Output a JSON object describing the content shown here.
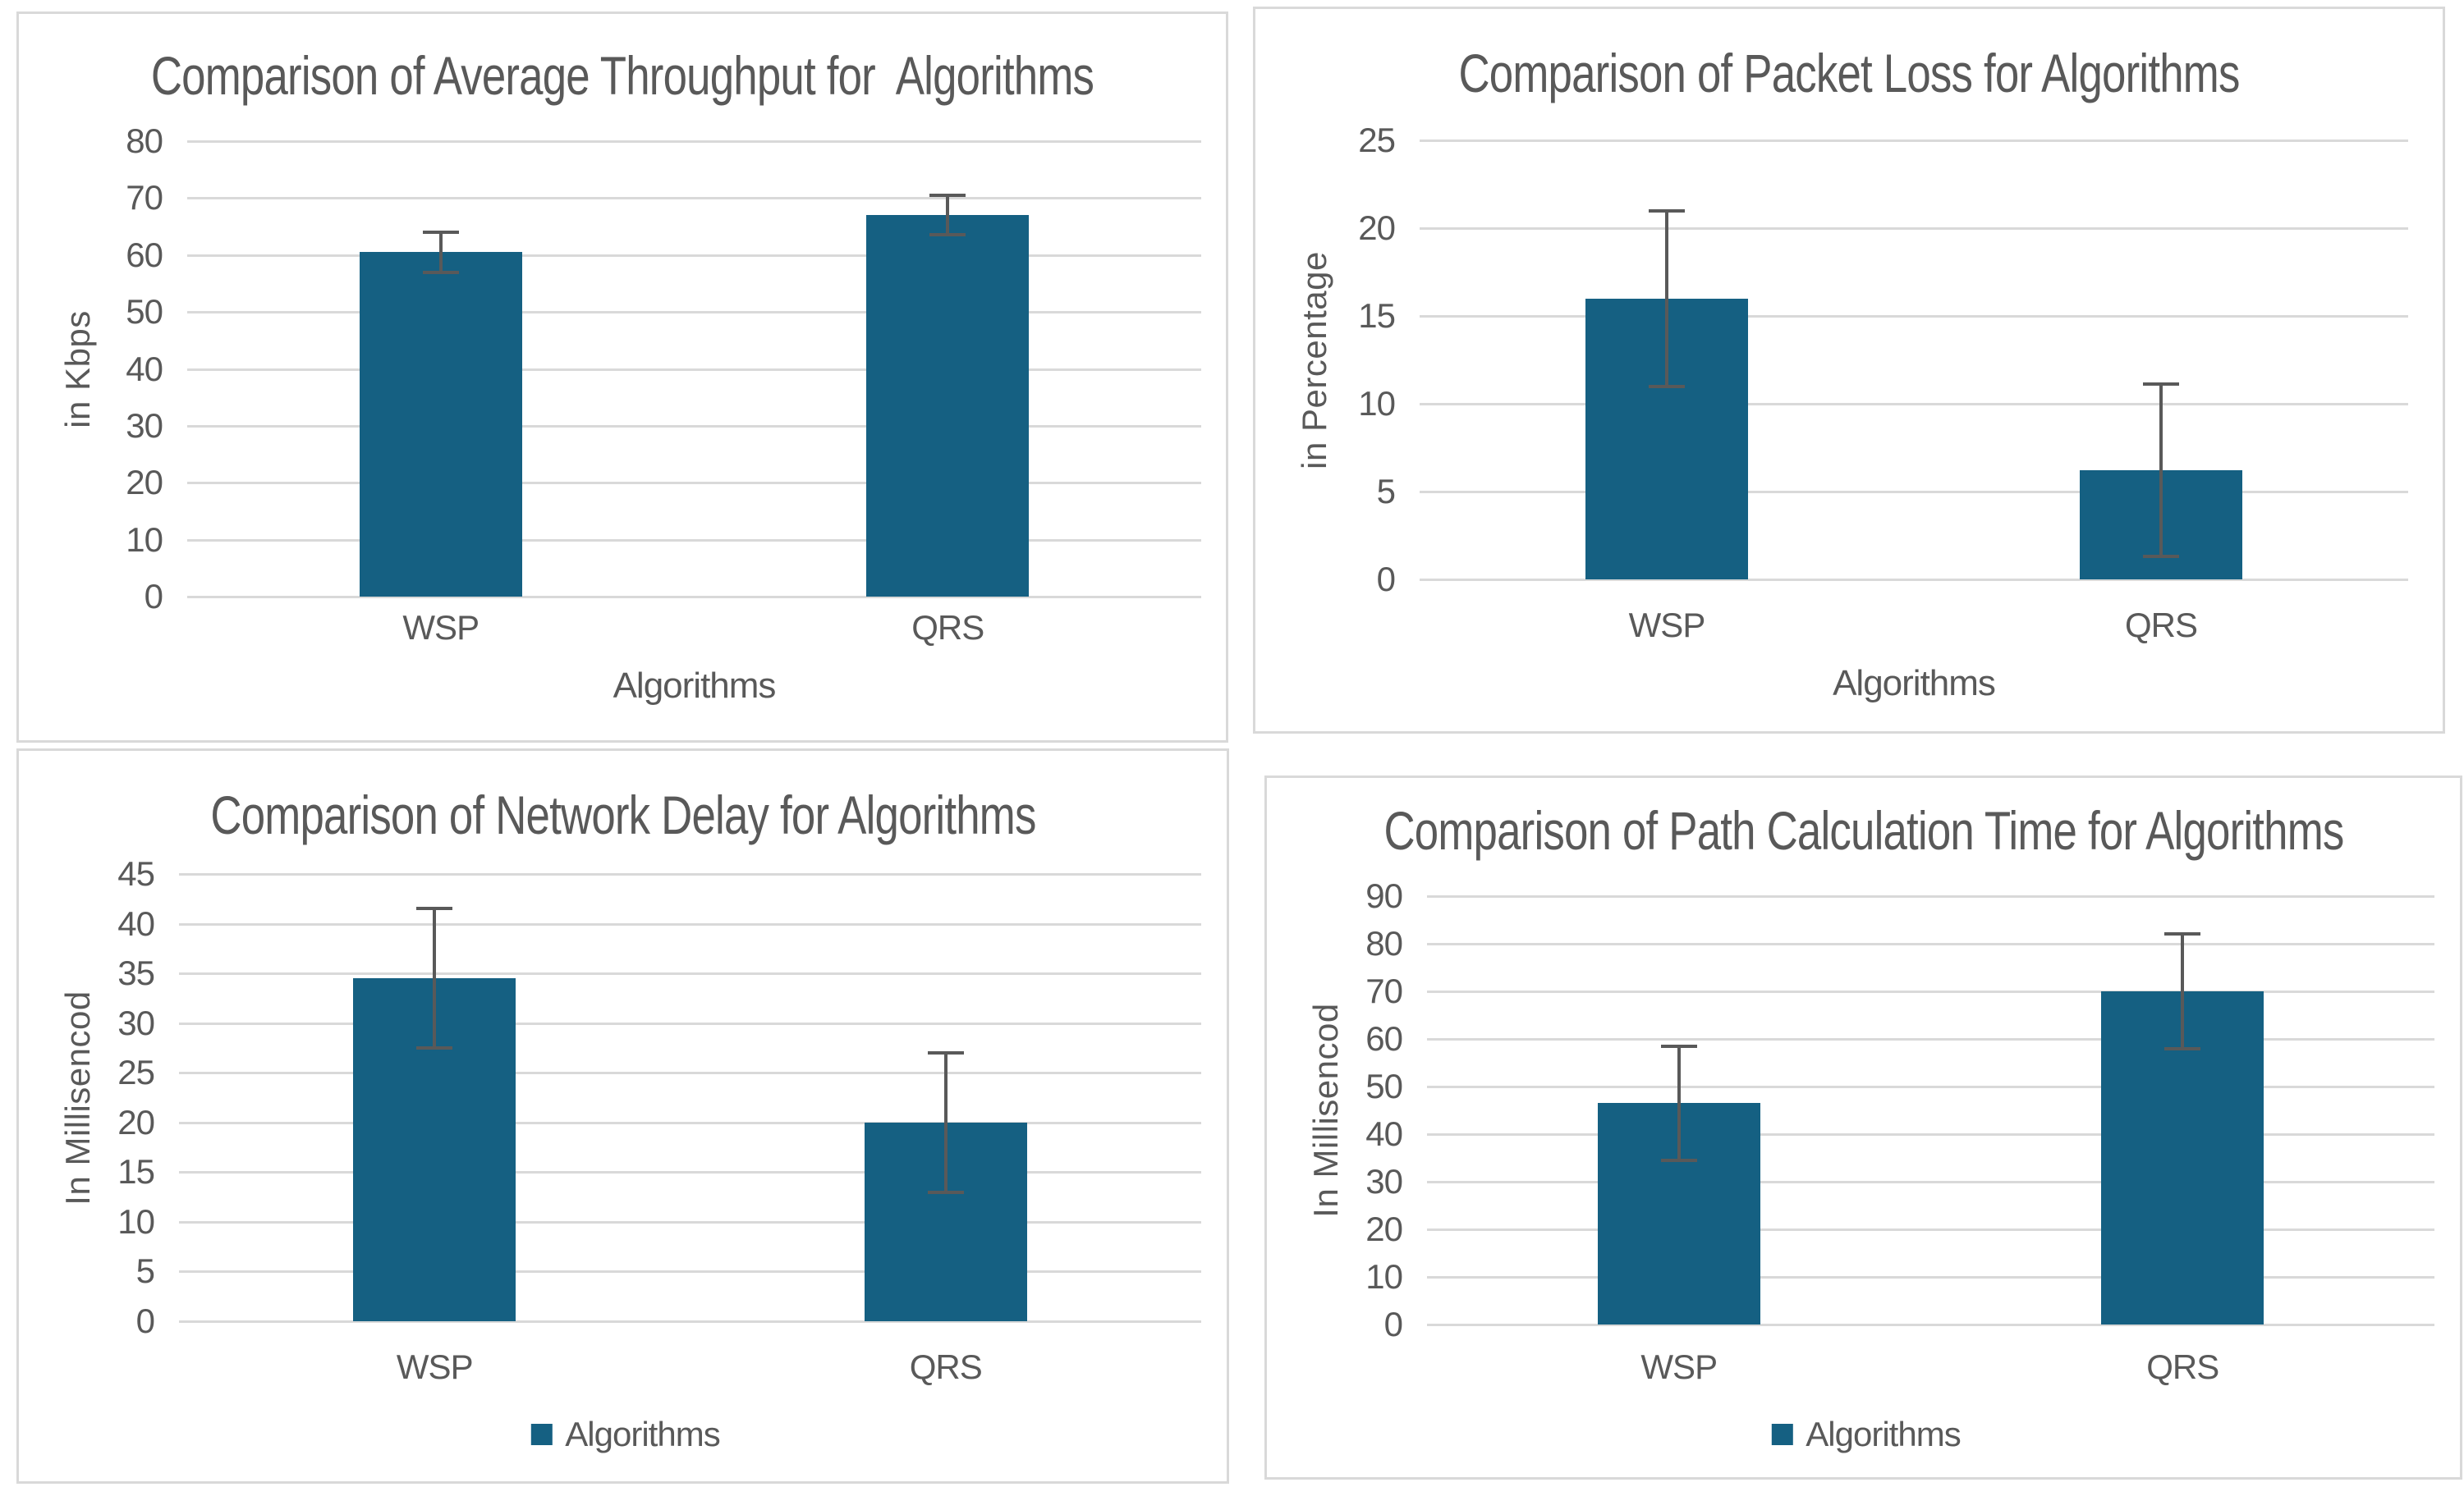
{
  "colors": {
    "bar": "#156082",
    "error_bar": "#595959",
    "gridline": "#D9D9D9",
    "text": "#595959",
    "panel_border": "#D9D9D9",
    "background": "#FFFFFF"
  },
  "chart_data": [
    {
      "type": "bar",
      "title": "Comparison of Average Throughput for  Algorithms",
      "categories": [
        "WSP",
        "QRS"
      ],
      "values": [
        60.5,
        67
      ],
      "error_bars": [
        3.5,
        3.5
      ],
      "xlabel": "Algorithms",
      "ylabel": "in Kbps",
      "ylim": [
        0,
        80
      ],
      "ytick_step": 10,
      "yticks": [
        "0",
        "10",
        "20",
        "30",
        "40",
        "50",
        "60",
        "70",
        "80"
      ],
      "grid": true,
      "legend": null
    },
    {
      "type": "bar",
      "title": "Comparison of Packet Loss for Algorithms",
      "categories": [
        "WSP",
        "QRS"
      ],
      "values": [
        16,
        6.2
      ],
      "error_bars": [
        5,
        4.9
      ],
      "xlabel": "Algorithms",
      "ylabel": "in Percentage",
      "ylim": [
        0,
        25
      ],
      "ytick_step": 5,
      "yticks": [
        "0",
        "5",
        "10",
        "15",
        "20",
        "25"
      ],
      "grid": true,
      "legend": null
    },
    {
      "type": "bar",
      "title": "Comparison of Network Delay for Algorithms",
      "categories": [
        "WSP",
        "QRS"
      ],
      "values": [
        34.5,
        20
      ],
      "error_bars": [
        7,
        7
      ],
      "xlabel": "",
      "ylabel": "In Millisencod",
      "ylim": [
        0,
        45
      ],
      "ytick_step": 5,
      "yticks": [
        "0",
        "5",
        "10",
        "15",
        "20",
        "25",
        "30",
        "35",
        "40",
        "45"
      ],
      "grid": true,
      "legend": {
        "label": "Algorithms",
        "position": "bottom"
      }
    },
    {
      "type": "bar",
      "title": "Comparison of Path Calculation Time for Algorithms",
      "categories": [
        "WSP",
        "QRS"
      ],
      "values": [
        46.5,
        70
      ],
      "error_bars": [
        12,
        12
      ],
      "xlabel": "",
      "ylabel": "In Millisencod",
      "ylim": [
        0,
        90
      ],
      "ytick_step": 10,
      "yticks": [
        "0",
        "10",
        "20",
        "30",
        "40",
        "50",
        "60",
        "70",
        "80",
        "90"
      ],
      "grid": true,
      "legend": {
        "label": "Algorithms",
        "position": "bottom"
      }
    }
  ]
}
